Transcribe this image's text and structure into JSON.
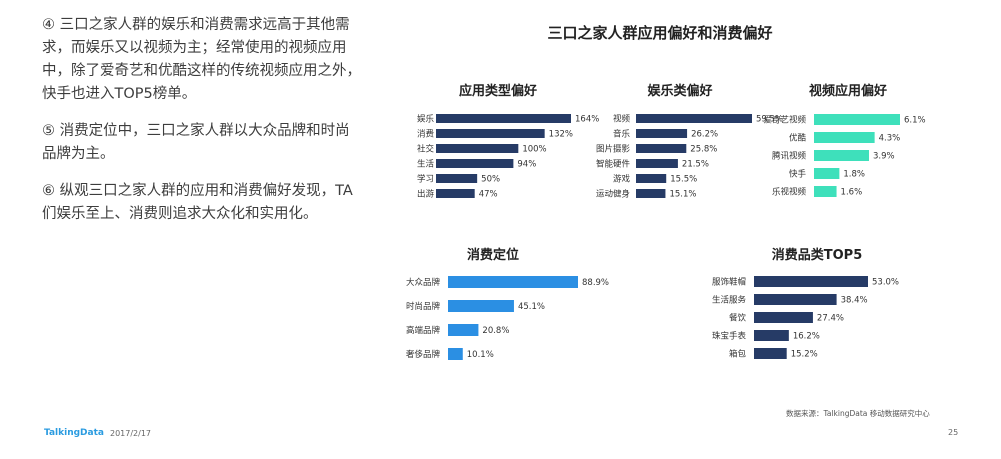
{
  "text_paragraphs": [
    "④ 三口之家人群的娱乐和消费需求远高于其他需求，而娱乐又以视频为主；经常使用的视频应用中，除了爱奇艺和优酷这样的传统视频应用之外，快手也进入TOP5榜单。",
    "⑤ 消费定位中，三口之家人群以大众品牌和时尚品牌为主。",
    "⑥ 纵观三口之家人群的应用和消费偏好发现，TA们娱乐至上、消费则追求大众化和实用化。"
  ],
  "main_title": "三口之家人群应用偏好和消费偏好",
  "footer": {
    "logo": "TalkingData",
    "date": "2017/2/17",
    "source": "数据来源：TalkingData 移动数据研究中心",
    "page": "25"
  },
  "colors": {
    "navy": "#263b66",
    "teal": "#3ee0bb",
    "blue": "#2b8fe3"
  },
  "chart_data": [
    {
      "id": "app-type",
      "type": "bar",
      "orientation": "horizontal",
      "title": "应用类型偏好",
      "color": "#263b66",
      "categories": [
        "娱乐",
        "消费",
        "社交",
        "生活",
        "学习",
        "出游"
      ],
      "values": [
        164,
        132,
        100,
        94,
        50,
        47
      ],
      "labels": [
        "164%",
        "132%",
        "100%",
        "94%",
        "50%",
        "47%"
      ]
    },
    {
      "id": "entertainment",
      "type": "bar",
      "orientation": "horizontal",
      "title": "娱乐类偏好",
      "color": "#263b66",
      "categories": [
        "视频",
        "音乐",
        "图片摄影",
        "智能硬件",
        "游戏",
        "运动健身"
      ],
      "values": [
        59.5,
        26.2,
        25.8,
        21.5,
        15.5,
        15.1
      ],
      "labels": [
        "59.5%",
        "26.2%",
        "25.8%",
        "21.5%",
        "15.5%",
        "15.1%"
      ]
    },
    {
      "id": "video-app",
      "type": "bar",
      "orientation": "horizontal",
      "title": "视频应用偏好",
      "color": "#3ee0bb",
      "categories": [
        "爱奇艺视频",
        "优酷",
        "腾讯视频",
        "快手",
        "乐视视频"
      ],
      "values": [
        6.1,
        4.3,
        3.9,
        1.8,
        1.6
      ],
      "labels": [
        "6.1%",
        "4.3%",
        "3.9%",
        "1.8%",
        "1.6%"
      ]
    },
    {
      "id": "consumer-position",
      "type": "bar",
      "orientation": "horizontal",
      "title": "消费定位",
      "color": "#2b8fe3",
      "categories": [
        "大众品牌",
        "时尚品牌",
        "高端品牌",
        "奢侈品牌"
      ],
      "values": [
        88.9,
        45.1,
        20.8,
        10.1
      ],
      "labels": [
        "88.9%",
        "45.1%",
        "20.8%",
        "10.1%"
      ]
    },
    {
      "id": "consumer-category",
      "type": "bar",
      "orientation": "horizontal",
      "title": "消费品类TOP5",
      "color": "#263b66",
      "categories": [
        "服饰鞋帽",
        "生活服务",
        "餐饮",
        "珠宝手表",
        "箱包"
      ],
      "values": [
        53.0,
        38.4,
        27.4,
        16.2,
        15.2
      ],
      "labels": [
        "53.0%",
        "38.4%",
        "27.4%",
        "16.2%",
        "15.2%"
      ]
    }
  ]
}
